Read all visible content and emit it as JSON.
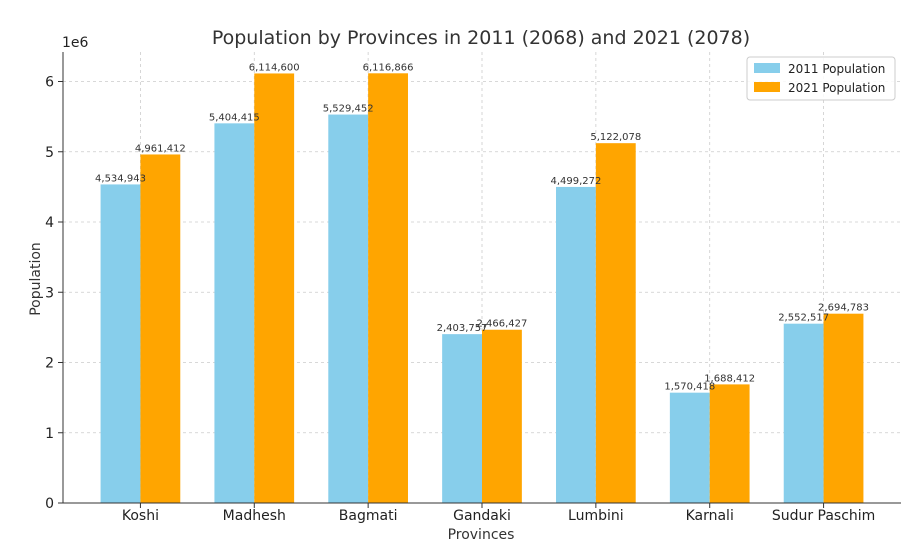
{
  "chart_data": {
    "type": "bar",
    "title": "Population by Provinces in 2011 (2068) and 2021 (2078)",
    "xlabel": "Provinces",
    "ylabel": "Population",
    "y_offset_label": "1e6",
    "categories": [
      "Koshi",
      "Madhesh",
      "Bagmati",
      "Gandaki",
      "Lumbini",
      "Karnali",
      "Sudur Paschim"
    ],
    "series": [
      {
        "name": "2011 Population",
        "color": "#87CEEB",
        "values": [
          4534943,
          5404415,
          5529452,
          2403757,
          4499272,
          1570418,
          2552517
        ],
        "labels": [
          "4,534,943",
          "5,404,415",
          "5,529,452",
          "2,403,757",
          "4,499,272",
          "1,570,418",
          "2,552,517"
        ]
      },
      {
        "name": "2021 Population",
        "color": "#FFA500",
        "values": [
          4961412,
          6114600,
          6116866,
          2466427,
          5122078,
          1688412,
          2694783
        ],
        "labels": [
          "4,961,412",
          "6,114,600",
          "6,116,866",
          "2,466,427",
          "5,122,078",
          "1,688,412",
          "2,694,783"
        ]
      }
    ],
    "ylim": [
      0,
      6420000
    ],
    "yticks": [
      0,
      1000000,
      2000000,
      3000000,
      4000000,
      5000000,
      6000000
    ],
    "ytick_labels": [
      "0",
      "1",
      "2",
      "3",
      "4",
      "5",
      "6"
    ],
    "grid": true,
    "legend_position": "top-right"
  }
}
